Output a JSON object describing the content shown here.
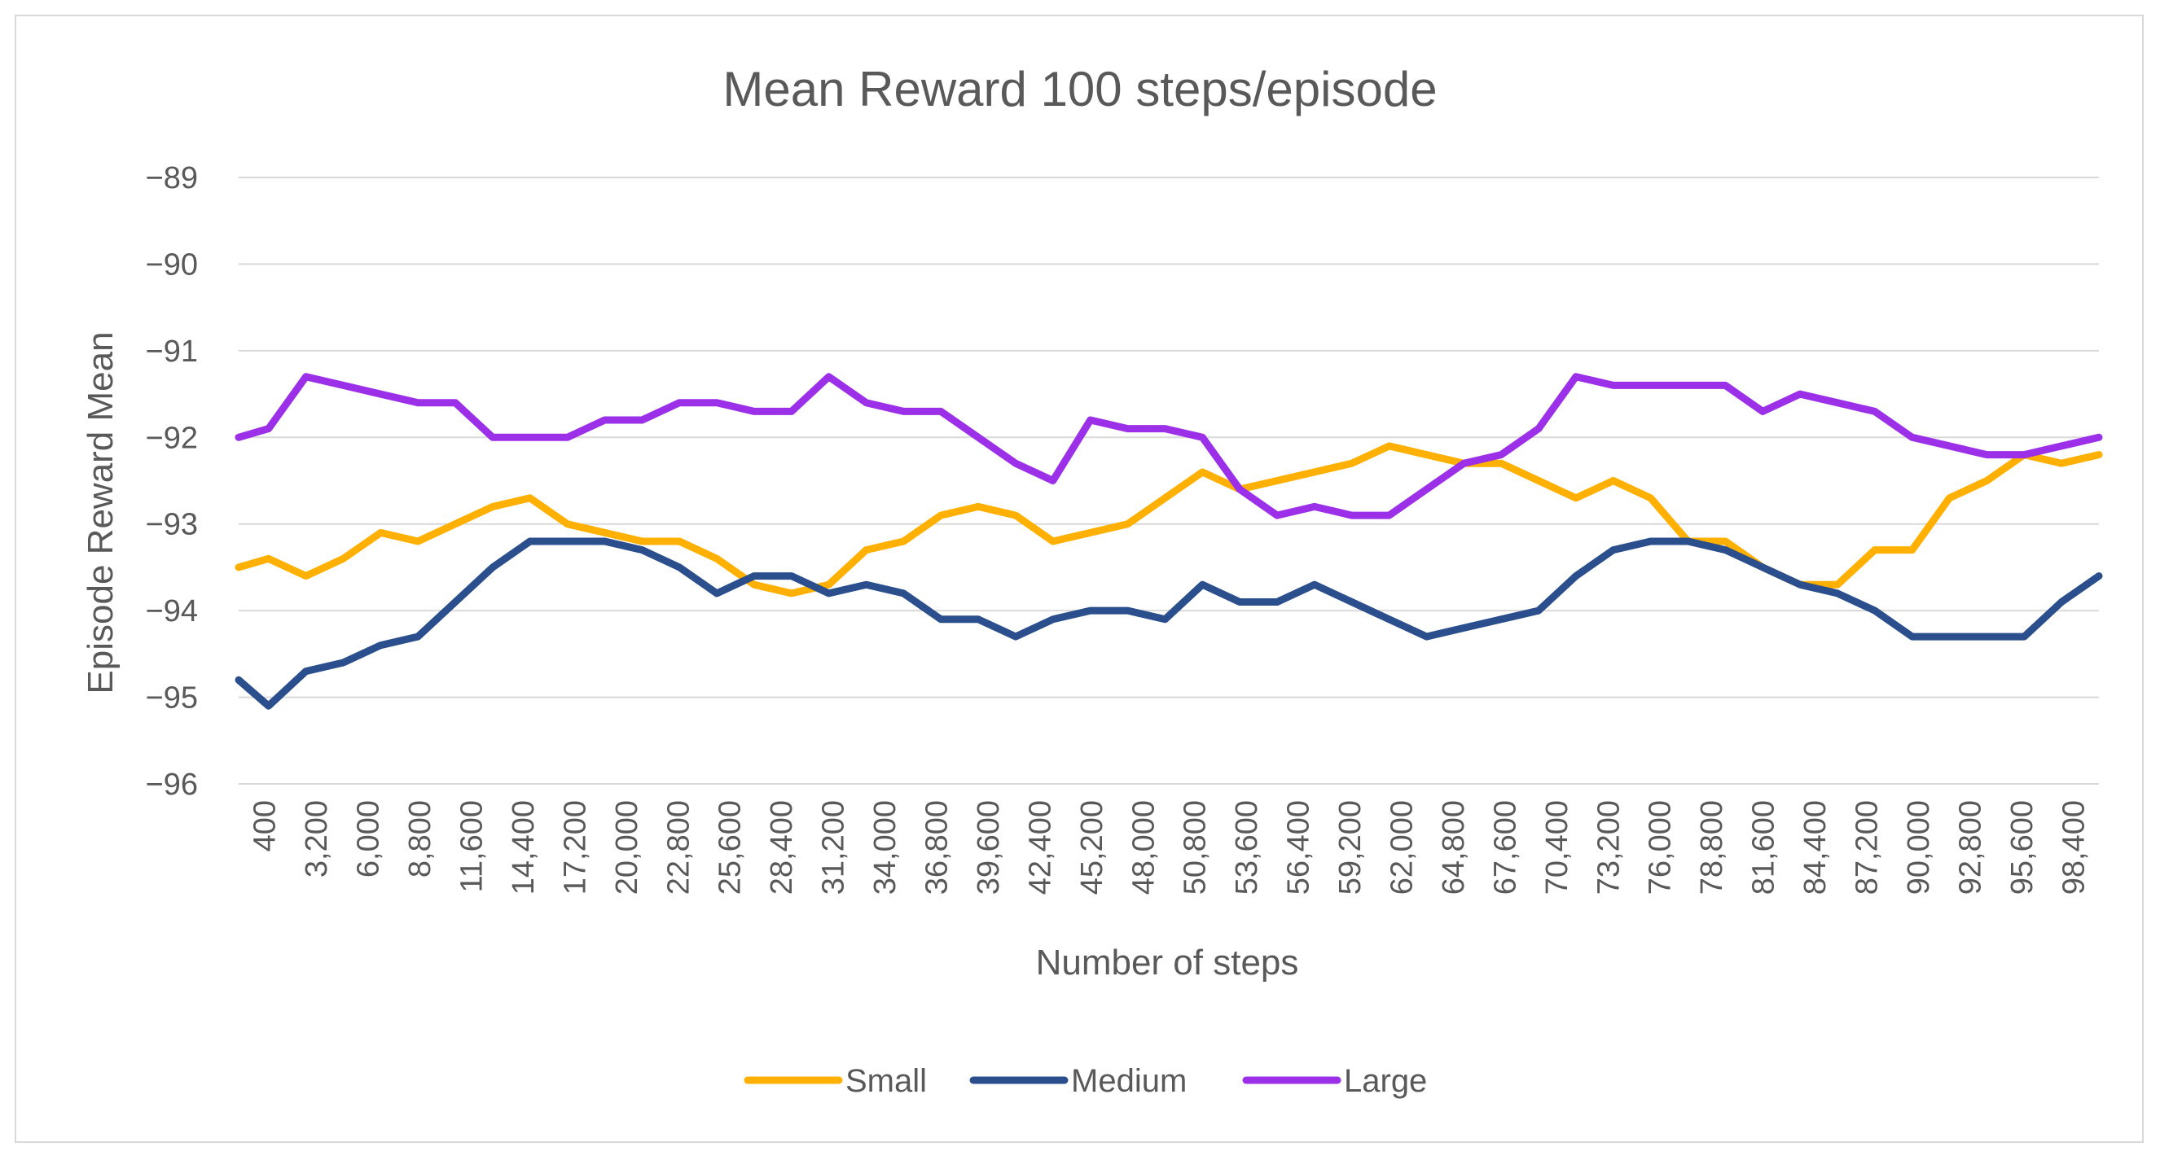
{
  "chart_data": {
    "type": "line",
    "title": "Mean Reward 100 steps/episode",
    "xlabel": "Number of steps",
    "ylabel": "Episode Reward Mean",
    "ylim": [
      -96,
      -89
    ],
    "yticks": [
      -89,
      -90,
      -91,
      -92,
      -93,
      -94,
      -95,
      -96
    ],
    "ytick_labels": [
      "−89",
      "−90",
      "−91",
      "−92",
      "−93",
      "−94",
      "−95",
      "−96"
    ],
    "xlim": [
      400,
      100000
    ],
    "xtick_labels": [
      "400",
      "3,200",
      "6,000",
      "8,800",
      "11,600",
      "14,400",
      "17,200",
      "20,000",
      "22,800",
      "25,600",
      "28,400",
      "31,200",
      "34,000",
      "36,800",
      "39,600",
      "42,400",
      "45,200",
      "48,000",
      "50,800",
      "53,600",
      "56,400",
      "59,200",
      "62,000",
      "64,800",
      "67,600",
      "70,400",
      "73,200",
      "76,000",
      "78,800",
      "81,600",
      "84,400",
      "87,200",
      "90,000",
      "92,800",
      "95,600",
      "98,400"
    ],
    "grid": true,
    "legend_position": "bottom",
    "x": [
      400,
      2000,
      4000,
      6000,
      8000,
      10000,
      12000,
      14000,
      16000,
      18000,
      20000,
      22000,
      24000,
      26000,
      28000,
      30000,
      32000,
      34000,
      36000,
      38000,
      40000,
      42000,
      44000,
      46000,
      48000,
      50000,
      52000,
      54000,
      56000,
      58000,
      60000,
      62000,
      64000,
      66000,
      68000,
      70000,
      72000,
      74000,
      76000,
      78000,
      80000,
      82000,
      84000,
      86000,
      88000,
      90000,
      92000,
      94000,
      96000,
      98000,
      100000
    ],
    "series": [
      {
        "name": "Small",
        "color": "#FFB000",
        "values": [
          -93.5,
          -93.4,
          -93.6,
          -93.4,
          -93.1,
          -93.2,
          -93.0,
          -92.8,
          -92.7,
          -93.0,
          -93.1,
          -93.2,
          -93.2,
          -93.4,
          -93.7,
          -93.8,
          -93.7,
          -93.3,
          -93.2,
          -92.9,
          -92.8,
          -92.9,
          -93.2,
          -93.1,
          -93.0,
          -92.7,
          -92.4,
          -92.6,
          -92.5,
          -92.4,
          -92.3,
          -92.1,
          -92.2,
          -92.3,
          -92.3,
          -92.5,
          -92.7,
          -92.5,
          -92.7,
          -93.2,
          -93.2,
          -93.5,
          -93.7,
          -93.7,
          -93.3,
          -93.3,
          -92.7,
          -92.5,
          -92.2,
          -92.3,
          -92.2
        ]
      },
      {
        "name": "Medium",
        "color": "#2B4F8C",
        "values": [
          -94.8,
          -95.1,
          -94.7,
          -94.6,
          -94.4,
          -94.3,
          -93.9,
          -93.5,
          -93.2,
          -93.2,
          -93.2,
          -93.3,
          -93.5,
          -93.8,
          -93.6,
          -93.6,
          -93.8,
          -93.7,
          -93.8,
          -94.1,
          -94.1,
          -94.3,
          -94.1,
          -94.0,
          -94.0,
          -94.1,
          -93.7,
          -93.9,
          -93.9,
          -93.7,
          -93.9,
          -94.1,
          -94.3,
          -94.2,
          -94.1,
          -94.0,
          -93.6,
          -93.3,
          -93.2,
          -93.2,
          -93.3,
          -93.5,
          -93.7,
          -93.8,
          -94.0,
          -94.3,
          -94.3,
          -94.3,
          -94.3,
          -93.9,
          -93.6
        ]
      },
      {
        "name": "Large",
        "color": "#9B30E8",
        "values": [
          -92.0,
          -91.9,
          -91.3,
          -91.4,
          -91.5,
          -91.6,
          -91.6,
          -92.0,
          -92.0,
          -92.0,
          -91.8,
          -91.8,
          -91.6,
          -91.6,
          -91.7,
          -91.7,
          -91.3,
          -91.6,
          -91.7,
          -91.7,
          -92.0,
          -92.3,
          -92.5,
          -91.8,
          -91.9,
          -91.9,
          -92.0,
          -92.6,
          -92.9,
          -92.8,
          -92.9,
          -92.9,
          -92.6,
          -92.3,
          -92.2,
          -91.9,
          -91.3,
          -91.4,
          -91.4,
          -91.4,
          -91.4,
          -91.7,
          -91.5,
          -91.6,
          -91.7,
          -92.0,
          -92.1,
          -92.2,
          -92.2,
          -92.1,
          -92.0
        ]
      }
    ]
  }
}
